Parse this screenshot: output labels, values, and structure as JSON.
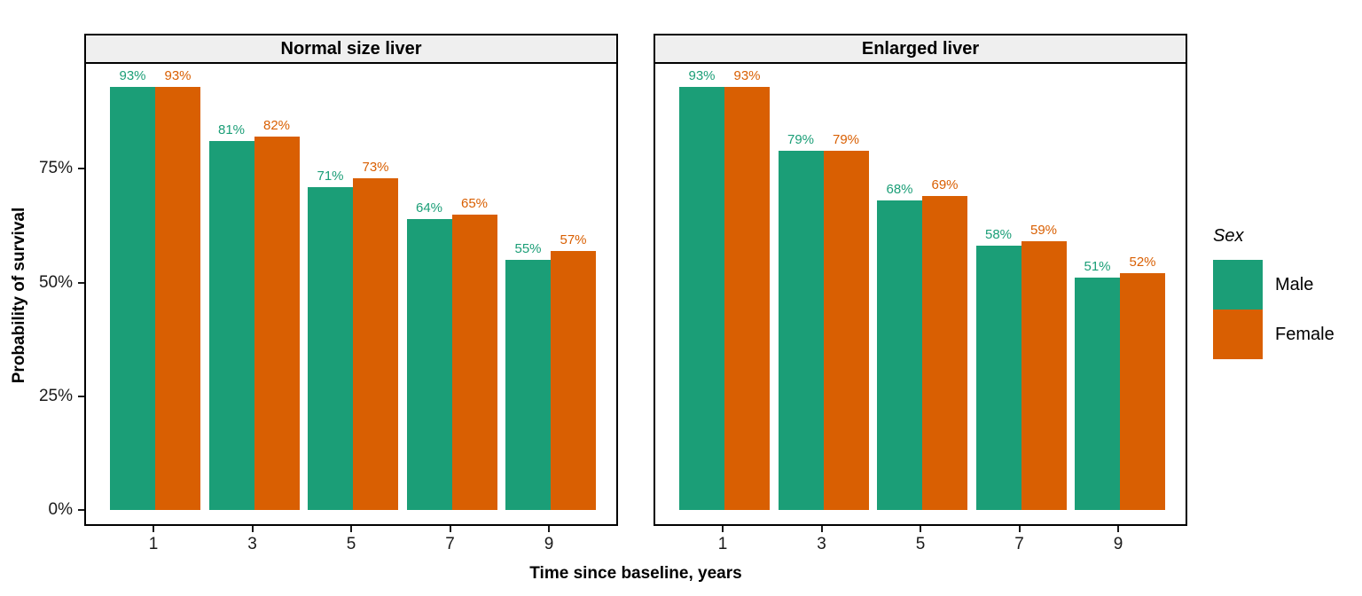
{
  "figure": {
    "legend": {
      "title": "Sex",
      "items": [
        {
          "label": "Male",
          "color": "#1B9E77"
        },
        {
          "label": "Female",
          "color": "#D95F02"
        }
      ]
    },
    "colors": {
      "male_bar": "#1B9E77",
      "female_bar": "#D95F02",
      "strip_background": "#EFEFEF",
      "panel_border": "#000000",
      "axis_text": "#1a1a1a"
    }
  },
  "chart_data": {
    "type": "bar",
    "title": "",
    "xlabel": "Time since baseline, years",
    "ylabel": "Probability of survival",
    "ylim": [
      0,
      100
    ],
    "y_ticks": [
      0,
      25,
      50,
      75
    ],
    "y_tick_labels": [
      "0%",
      "25%",
      "50%",
      "75%"
    ],
    "grid": false,
    "legend_position": "right",
    "value_suffix": "%",
    "facets": [
      {
        "title": "Normal size liver",
        "categories": [
          "1",
          "3",
          "5",
          "7",
          "9"
        ],
        "series": [
          {
            "name": "Male",
            "values": [
              93,
              81,
              71,
              64,
              55
            ]
          },
          {
            "name": "Female",
            "values": [
              93,
              82,
              73,
              65,
              57
            ]
          }
        ]
      },
      {
        "title": "Enlarged liver",
        "categories": [
          "1",
          "3",
          "5",
          "7",
          "9"
        ],
        "series": [
          {
            "name": "Male",
            "values": [
              93,
              79,
              68,
              58,
              51
            ]
          },
          {
            "name": "Female",
            "values": [
              93,
              79,
              69,
              59,
              52
            ]
          }
        ]
      }
    ]
  }
}
